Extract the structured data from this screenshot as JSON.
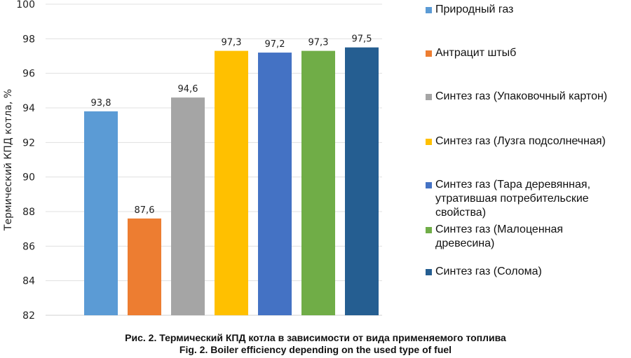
{
  "chart_data": {
    "type": "bar",
    "title": "",
    "xlabel": "",
    "ylabel": "Термический КПД котла, %",
    "ylim": [
      82,
      100
    ],
    "yticks": [
      82,
      84,
      86,
      88,
      90,
      92,
      94,
      96,
      98,
      100
    ],
    "grid": true,
    "legend_position": "right",
    "categories": [
      "Природный газ",
      "Антрацит штыб",
      "Синтез газ (Упаковочный картон)",
      "Синтез газ (Лузга подсолнечная)",
      "Синтез газ (Тара деревянная, утратившая потребительские свойства)",
      "Синтез газ (Малоценная древесина)",
      "Синтез газ (Солома)"
    ],
    "values": [
      93.8,
      87.6,
      94.6,
      97.3,
      97.2,
      97.3,
      97.5
    ],
    "data_labels": [
      "93,8",
      "87,6",
      "94,6",
      "97,3",
      "97,2",
      "97,3",
      "97,5"
    ],
    "colors": [
      "#5B9BD5",
      "#ED7D31",
      "#A5A5A5",
      "#FFC000",
      "#4472C4",
      "#70AD47",
      "#255E91"
    ]
  },
  "legend": {
    "items": [
      {
        "lines": [
          "Природный газ"
        ]
      },
      {
        "lines": [
          "Антрацит штыб"
        ]
      },
      {
        "lines": [
          "Синтез газ (Упаковочный картон)"
        ]
      },
      {
        "lines": [
          "Синтез газ (Лузга подсолнечная)"
        ]
      },
      {
        "lines": [
          "Синтез газ (Тара деревянная,",
          "утратившая потребительские",
          "свойства)"
        ]
      },
      {
        "lines": [
          "Синтез газ (Малоценная",
          "древесина)"
        ]
      },
      {
        "lines": [
          "Синтез газ (Солома)"
        ]
      }
    ]
  },
  "caption": {
    "ru": "Рис. 2. Термический КПД котла в зависимости от вида применяемого топлива",
    "en": "Fig. 2. Boiler efficiency depending on the used type of fuel"
  }
}
